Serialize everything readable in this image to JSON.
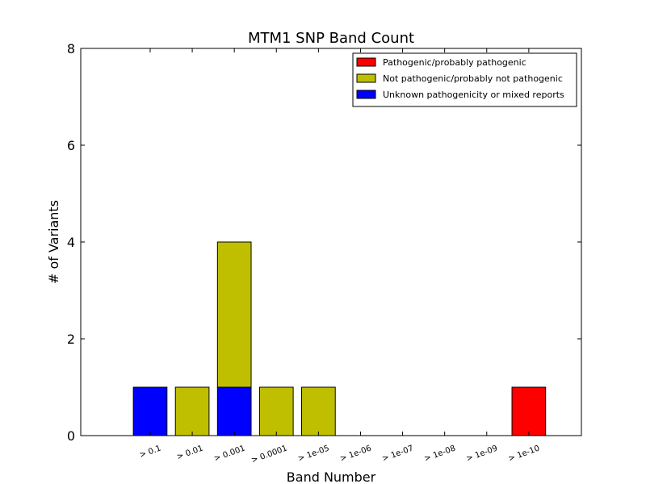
{
  "chart_data": {
    "type": "bar",
    "stacked": true,
    "title": "MTM1 SNP Band Count",
    "xlabel": "Band Number",
    "ylabel": "# of Variants",
    "ylim": [
      0,
      8
    ],
    "yticks": [
      "0",
      "2",
      "4",
      "6",
      "8"
    ],
    "categories": [
      "> 0.1",
      "> 0.01",
      "> 0.001",
      "> 0.0001",
      "> 1e-05",
      "> 1e-06",
      "> 1e-07",
      "> 1e-08",
      "> 1e-09",
      "> 1e-10"
    ],
    "series": [
      {
        "name": "Unknown pathogenicity or mixed reports",
        "color": "#0000ff",
        "values": [
          1,
          0,
          1,
          0,
          0,
          0,
          0,
          0,
          0,
          0
        ]
      },
      {
        "name": "Not pathogenic/probably not pathogenic",
        "color": "#bfbf00",
        "values": [
          0,
          1,
          3,
          1,
          1,
          0,
          0,
          0,
          0,
          0
        ]
      },
      {
        "name": "Pathogenic/probably pathogenic",
        "color": "#ff0000",
        "values": [
          0,
          0,
          0,
          0,
          0,
          0,
          0,
          0,
          0,
          1
        ]
      }
    ],
    "legend": {
      "placement": "top-right",
      "order": [
        "Pathogenic/probably pathogenic",
        "Not pathogenic/probably not pathogenic",
        "Unknown pathogenicity or mixed reports"
      ]
    },
    "grid": false
  }
}
